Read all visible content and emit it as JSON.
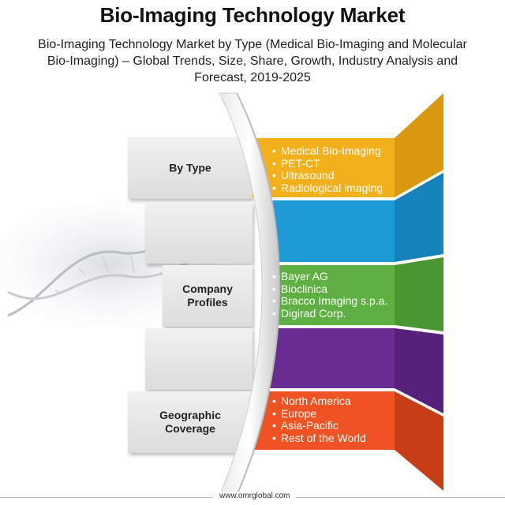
{
  "header": {
    "title": "Bio-Imaging Technology Market",
    "subtitle": "Bio-Imaging Technology Market by Type (Medical Bio-Imaging and Molecular Bio-Imaging) – Global Trends, Size, Share, Growth, Industry Analysis and Forecast, 2019-2025"
  },
  "cards": [
    {
      "label": "By Type"
    },
    {
      "label": ""
    },
    {
      "label": "Company\nProfiles"
    },
    {
      "label": ""
    },
    {
      "label": "Geographic\nCoverage"
    }
  ],
  "bands": [
    {
      "color": "#f2b11b",
      "items": [
        "Medical Bio-Imaging",
        "PET-CT",
        "Ultrasound",
        "Radiological imaging"
      ]
    },
    {
      "color": "#1e9ad6",
      "items": []
    },
    {
      "color": "#5fb043",
      "items": [
        "Bayer AG",
        "Bioclinica",
        "Bracco Imaging s.p.a.",
        "Digirad Corp."
      ]
    },
    {
      "color": "#6a2c91",
      "items": []
    },
    {
      "color": "#ef5323",
      "items": [
        "North America",
        "Europe",
        "Asia-Pacific",
        "Rest of the World"
      ]
    }
  ],
  "footer": {
    "site": "www.omrglobal.com"
  }
}
